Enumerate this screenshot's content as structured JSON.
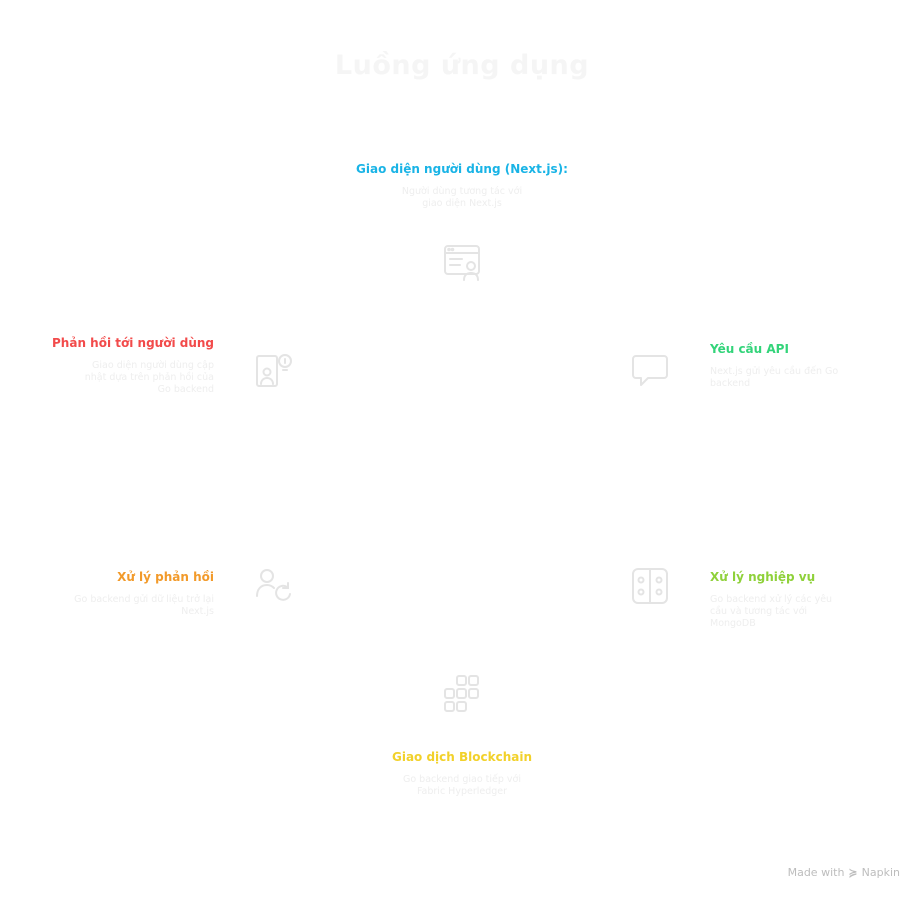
{
  "title": "Luồng ứng dụng",
  "colors": {
    "blue": "#1ab4e6",
    "green": "#33d47a",
    "lime": "#8fd13a",
    "yellow": "#f2d12a",
    "orange": "#f29a2a",
    "red": "#f24b4b",
    "icon": "#e4e4e4"
  },
  "nodes": {
    "frontend": {
      "title": "Giao diện người dùng (Next.js):",
      "desc": "Người dùng tương tác với giao diện Next.js",
      "icon": "browser-user-icon"
    },
    "api": {
      "title": "Yêu cầu API",
      "desc": "Next.js gửi yêu cầu đến Go backend",
      "icon": "chat-bubble-icon"
    },
    "business": {
      "title": "Xử lý nghiệp vụ",
      "desc": "Go backend xử lý các yêu cầu và tương tác với MongoDB",
      "icon": "controller-icon"
    },
    "blockchain": {
      "title": "Giao dịch Blockchain",
      "desc": "Go backend giao tiếp với Fabric Hyperledger",
      "icon": "blocks-icon"
    },
    "response": {
      "title": "Xử lý phản hồi",
      "desc": "Go backend gửi dữ liệu trở lại Next.js",
      "icon": "user-refresh-icon"
    },
    "user_feedback": {
      "title": "Phản hồi tới người dùng",
      "desc": "Giao diện người dùng cập nhật dựa trên phản hồi của Go backend",
      "icon": "user-idea-icon"
    }
  },
  "footer": {
    "made_with": "Made with",
    "brand": "Napkin"
  }
}
